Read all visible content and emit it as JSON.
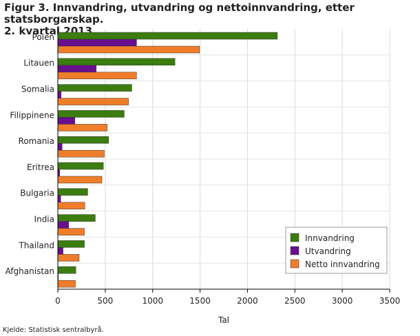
{
  "title_line1": "Figur 3. Innvandring, utvandring og nettoinnvandring, etter statsborgarskap.",
  "title_line2": "2. kvartal 2013",
  "source": "Kjelde: Statistisk sentralbyrå.",
  "chart_data": {
    "type": "bar",
    "orientation": "horizontal",
    "categories": [
      "Polen",
      "Litauen",
      "Somalia",
      "Filippinene",
      "Romania",
      "Eritrea",
      "Bulgaria",
      "India",
      "Thailand",
      "Afghanistan"
    ],
    "series": [
      {
        "name": "Innvandring",
        "color": "#3b7d0f",
        "values": [
          2315,
          1235,
          780,
          700,
          535,
          480,
          315,
          395,
          280,
          190
        ]
      },
      {
        "name": "Utvandring",
        "color": "#6a0f8e",
        "values": [
          830,
          405,
          35,
          180,
          45,
          20,
          30,
          115,
          55,
          5
        ]
      },
      {
        "name": "Netto innvandring",
        "color": "#ef7d29",
        "values": [
          1495,
          830,
          745,
          520,
          490,
          465,
          285,
          280,
          225,
          185
        ]
      }
    ],
    "xlabel": "Tal",
    "xlim": [
      0,
      3500
    ],
    "xticks": [
      0,
      500,
      1000,
      1500,
      2000,
      2500,
      3000,
      3500
    ],
    "grid": true,
    "legend_position": "bottom-right"
  }
}
